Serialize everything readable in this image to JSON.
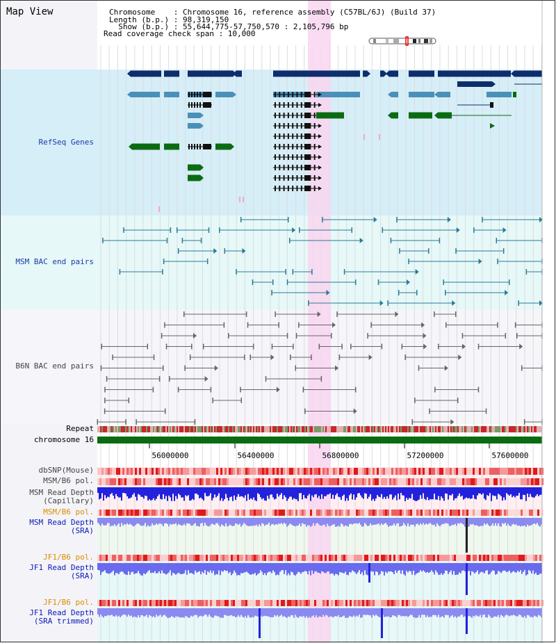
{
  "header": {
    "title": "Map View",
    "chromosome_line": "Chromosome    : Chromosome 16, reference assembly (C57BL/6J) (Build 37)",
    "length_line": "Length (b.p.) : 98,319,150",
    "show_line": "  Show (b.p.) : 55,644,775-57,750,570 : 2,105,796 bp",
    "coverage_line": "Read coverage check span : 10,000"
  },
  "tracks": {
    "refseq": "RefSeq Genes",
    "msm_bac": "MSM BAC end pairs",
    "b6n_bac": "B6N BAC end pairs",
    "repeat": "Repeat",
    "chromosome": "chromosome 16",
    "dbsnp": "dbSNP(Mouse)",
    "msm_b6_pol": "MSM/B6 pol.",
    "msm_read_depth_cap_1": "MSM Read Depth",
    "msm_read_depth_cap_2": "(Capillary)",
    "msm_b6_pol_2": "MSM/B6 pol.",
    "msm_read_depth_sra_1": "MSM Read Depth",
    "msm_read_depth_sra_2": "(SRA)",
    "jf1_b6_pol": "JF1/B6 pol.",
    "jf1_read_depth_sra_1": "JF1 Read Depth",
    "jf1_read_depth_sra_2": "(SRA)",
    "jf1_b6_pol_2": "JF1/B6 pol.",
    "jf1_read_depth_trim_1": "JF1 Read Depth",
    "jf1_read_depth_trim_2": "(SRA trimmed)"
  },
  "axis": {
    "ticks": [
      "56000000",
      "56400000",
      "56800000",
      "57200000",
      "57600000"
    ]
  },
  "colors": {
    "refseq_bg": "#d6eef8",
    "bac_bg": "#e6f8f8",
    "b6n_bg": "#f5f5fa",
    "highlight": "#f8d6f0",
    "gene_navy": "#0d2d6b",
    "gene_steel": "#4a90b8",
    "gene_green": "#0b6b12",
    "msm_bac": "#2a7a95",
    "b6n_bac": "#666666",
    "chromosome": "#0b6b12",
    "depth_blue": "#3a3ae0"
  }
}
